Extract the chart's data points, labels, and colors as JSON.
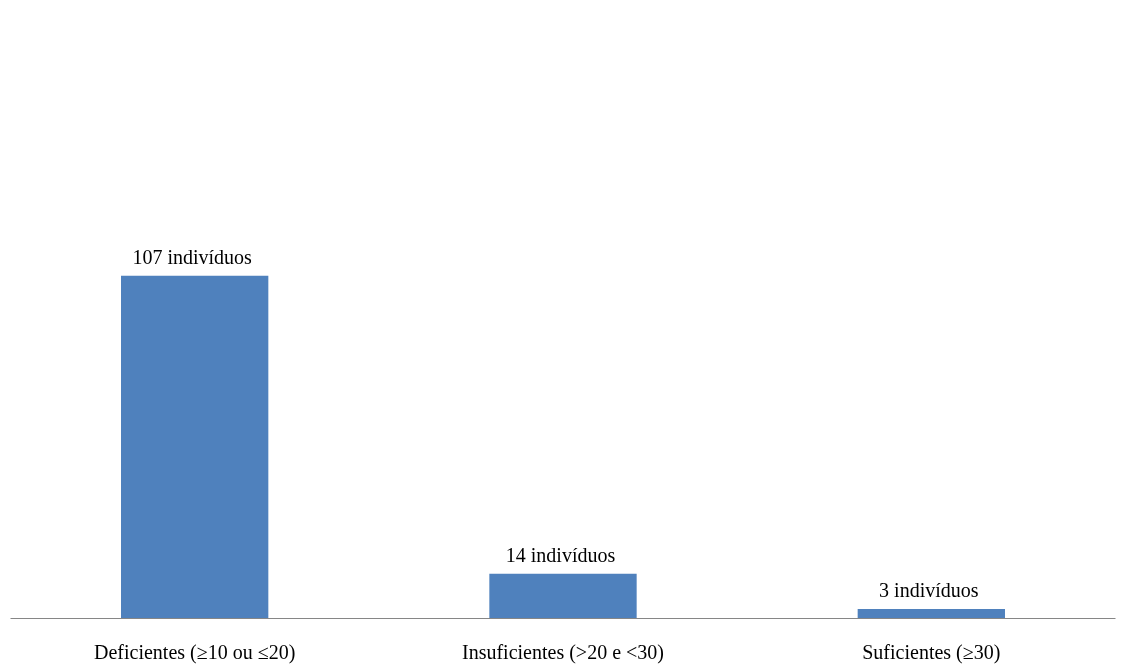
{
  "chart_data": {
    "type": "bar",
    "categories": [
      "Deficientes (≥10 ou ≤20)",
      "Insuficientes (>20 e <30)",
      "Suficientes (≥30)"
    ],
    "values": [
      107,
      14,
      3
    ],
    "value_labels": [
      "107  indivíduos",
      "14  indivíduos",
      "3  indivíduos"
    ],
    "color": "#4f81bd"
  }
}
